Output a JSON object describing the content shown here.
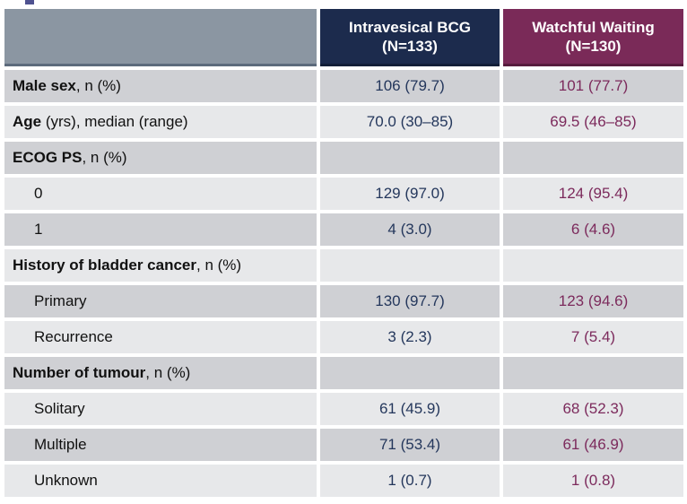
{
  "page": {
    "title_fragment_color": "#4f5290"
  },
  "colors": {
    "header_gray": "#8b96a2",
    "header_navy": "#1c2b4d",
    "header_maroon": "#7a2a58",
    "value_navy": "#24375c",
    "value_maroon": "#7c2a5c",
    "stripe_dark": "#cfd0d4",
    "stripe_light": "#e7e8ea"
  },
  "table": {
    "columns": [
      {
        "label": ""
      },
      {
        "line1": "Intravesical BCG",
        "line2": "(N=133)"
      },
      {
        "line1": "Watchful Waiting",
        "line2": "(N=130)"
      }
    ],
    "rows": [
      {
        "label_bold": "Male sex",
        "label_rest": ", n (%)",
        "bcg": "106 (79.7)",
        "ww": "101 (77.7)"
      },
      {
        "label_bold": "Age",
        "label_rest": " (yrs), median (range)",
        "bcg": "70.0 (30–85)",
        "ww": "69.5 (46–85)"
      },
      {
        "label_bold": "ECOG PS",
        "label_rest": ", n (%)",
        "bcg": "",
        "ww": ""
      },
      {
        "label": "0",
        "bcg": "129 (97.0)",
        "ww": "124 (95.4)"
      },
      {
        "label": "1",
        "bcg": "4 (3.0)",
        "ww": "6 (4.6)"
      },
      {
        "label_bold": "History of bladder cancer",
        "label_rest": ", n (%)",
        "bcg": "",
        "ww": ""
      },
      {
        "label": "Primary",
        "bcg": "130 (97.7)",
        "ww": "123 (94.6)"
      },
      {
        "label": "Recurrence",
        "bcg": "3 (2.3)",
        "ww": "7 (5.4)"
      },
      {
        "label_bold": "Number of tumour",
        "label_rest": ", n (%)",
        "bcg": "",
        "ww": ""
      },
      {
        "label": "Solitary",
        "bcg": "61 (45.9)",
        "ww": "68 (52.3)"
      },
      {
        "label": "Multiple",
        "bcg": "71 (53.4)",
        "ww": "61 (46.9)"
      },
      {
        "label": "Unknown",
        "bcg": "1 (0.7)",
        "ww": "1 (0.8)"
      }
    ]
  }
}
